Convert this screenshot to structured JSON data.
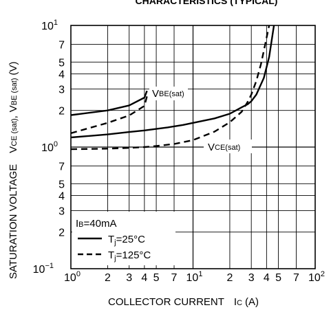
{
  "chart_data": {
    "type": "line",
    "title": "CHARACTERISTICS (TYPICAL)",
    "x_scale": "log",
    "y_scale": "log",
    "xlim": [
      1,
      100
    ],
    "ylim": [
      0.1,
      10
    ],
    "grid": true,
    "x_ticks": [
      1,
      2,
      3,
      4,
      5,
      7,
      10,
      20,
      30,
      40,
      50,
      70,
      100
    ],
    "x_tick_labels": [
      {
        "base": "10",
        "exp": "0"
      },
      {
        "base": "2"
      },
      {
        "base": "3"
      },
      {
        "base": "4"
      },
      {
        "base": "5"
      },
      {
        "base": "7"
      },
      {
        "base": "10",
        "exp": "1"
      },
      {
        "base": "2"
      },
      {
        "base": "3"
      },
      {
        "base": "4"
      },
      {
        "base": "5"
      },
      {
        "base": "7"
      },
      {
        "base": "10",
        "exp": "2"
      }
    ],
    "y_ticks": [
      0.1,
      0.2,
      0.3,
      0.4,
      0.5,
      0.7,
      1,
      2,
      3,
      4,
      5,
      7,
      10
    ],
    "y_tick_labels": [
      {
        "base": "10",
        "exp": "−1"
      },
      {
        "base": "2"
      },
      {
        "base": "3"
      },
      {
        "base": "4"
      },
      {
        "base": "5"
      },
      {
        "base": "7"
      },
      {
        "base": "10",
        "exp": "0"
      },
      {
        "base": "2"
      },
      {
        "base": "3"
      },
      {
        "base": "4"
      },
      {
        "base": "5"
      },
      {
        "base": "7"
      },
      {
        "base": "10",
        "exp": "1"
      }
    ],
    "xlabel": {
      "main": "COLLECTOR CURRENT",
      "sym": "I",
      "sub": "C",
      "unit": "(A)"
    },
    "ylabel": {
      "main": "SATURATION VOLTAGE",
      "v1": "V",
      "s1": "CE (sat)",
      "sep": ",",
      "v2": "V",
      "s2": "BE (sat)",
      "unit": "(V)"
    },
    "annotations": {
      "vbe": {
        "sym": "V",
        "sub": "BE(sat)"
      },
      "vce": {
        "sym": "V",
        "sub": "CE(sat)"
      }
    },
    "legend": {
      "placement": "bottom-left",
      "condition": {
        "sym": "I",
        "sub": "B",
        "val": "=40mA"
      },
      "items": [
        {
          "style": "solid",
          "prefix": "T",
          "sub": "j",
          "val": "=25°C"
        },
        {
          "style": "dashed",
          "prefix": "T",
          "sub": "j",
          "val": "=125°C"
        }
      ]
    },
    "series": [
      {
        "line_style": "solid",
        "curve": "VBE(sat)",
        "x": [
          1,
          2,
          3,
          4,
          4.2
        ],
        "y": [
          1.83,
          2.0,
          2.2,
          2.55,
          2.9
        ]
      },
      {
        "line_style": "dashed",
        "curve": "VBE(sat)",
        "x": [
          1,
          2,
          3,
          4,
          4.2
        ],
        "y": [
          1.3,
          1.58,
          1.82,
          2.18,
          2.62
        ]
      },
      {
        "line_style": "solid",
        "curve": "VCE(sat)",
        "x": [
          1,
          2,
          3,
          4,
          5,
          6.2,
          8.3,
          10,
          15,
          20,
          25,
          28,
          30,
          33,
          38,
          42,
          46
        ],
        "y": [
          1.2,
          1.27,
          1.33,
          1.37,
          1.41,
          1.45,
          1.52,
          1.58,
          1.72,
          1.88,
          2.12,
          2.25,
          2.38,
          2.7,
          3.7,
          5.5,
          10
        ]
      },
      {
        "line_style": "dashed",
        "curve": "VCE(sat)",
        "x": [
          1,
          2,
          3,
          4,
          5,
          7,
          10,
          15,
          20,
          25,
          28,
          30,
          33,
          36,
          39,
          42
        ],
        "y": [
          0.96,
          0.97,
          0.985,
          1.0,
          1.02,
          1.06,
          1.14,
          1.34,
          1.6,
          1.95,
          2.35,
          2.7,
          3.5,
          4.8,
          7.0,
          10
        ]
      }
    ]
  }
}
